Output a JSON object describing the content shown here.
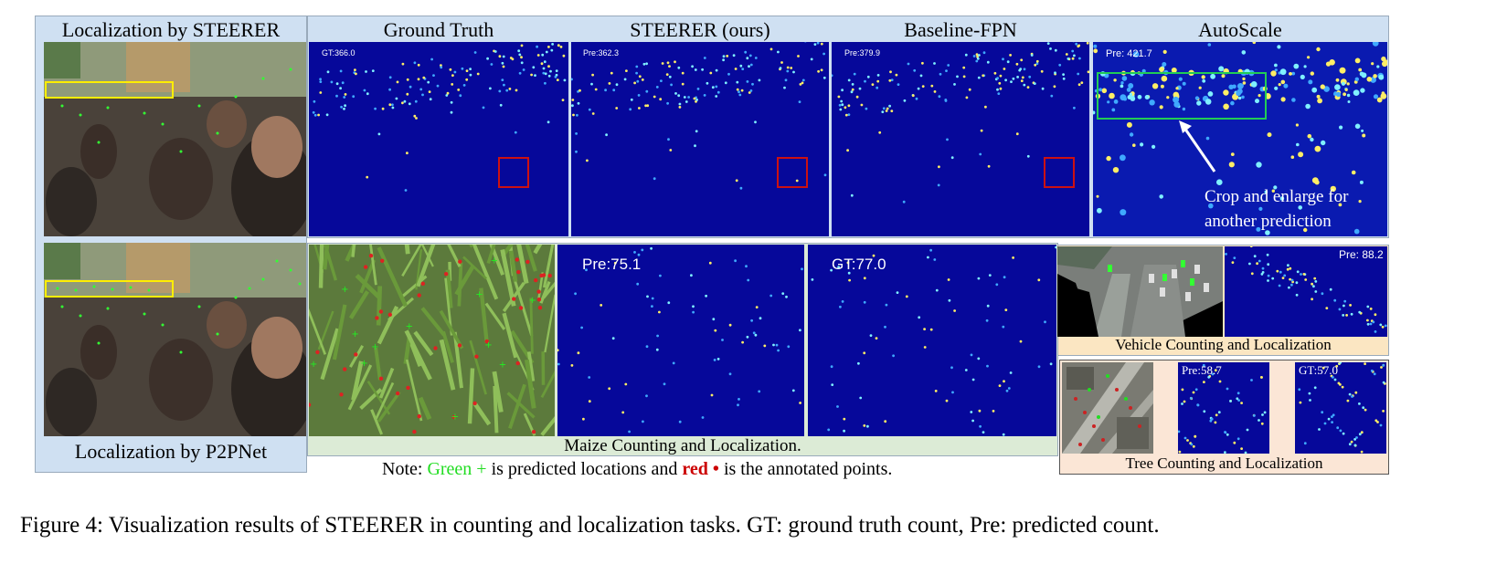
{
  "left_column": {
    "top_label": "Localization by STEERER",
    "bottom_label": "Localization by P2PNet"
  },
  "top_row": {
    "headers": [
      "Ground Truth",
      "STEERER (ours)",
      "Baseline-FPN",
      "AutoScale"
    ],
    "counts": [
      "GT:366.0",
      "Pre:362.3",
      "Pre:379.9",
      "Pre: 421.7"
    ],
    "autoscale_note_line1": "Crop and enlarge for",
    "autoscale_note_line2": "another prediction"
  },
  "maize": {
    "pred_count": "Pre:75.1",
    "gt_count": "GT:77.0",
    "label": "Maize Counting and Localization.",
    "note_prefix": "Note:",
    "note_green": "Green +",
    "note_mid": "is predicted locations and",
    "note_red": "red •",
    "note_suffix": "is the annotated points."
  },
  "vehicle": {
    "pred_count": "Pre: 88.2",
    "label": "Vehicle Counting and Localization"
  },
  "tree": {
    "pred_count": "Pre:58.7",
    "gt_count": "GT:57.0",
    "label": "Tree Counting and Localization"
  },
  "figure_caption": "Figure 4: Visualization results of STEERER in counting and localization tasks. GT: ground truth count, Pre: predicted count.",
  "colors": {
    "panel_bg": "#cfe0f2",
    "heatmap_bg": "#06089a",
    "maize_label_bg": "#dcebd6",
    "vehicle_label_bg": "#fbe6c2",
    "tree_panel_bg": "#fbe6d6",
    "highlight_yellow": "#ffee00",
    "highlight_red": "#cc1111",
    "highlight_green": "#22cc55",
    "note_green": "#22dd22",
    "note_red": "#cc0000"
  }
}
